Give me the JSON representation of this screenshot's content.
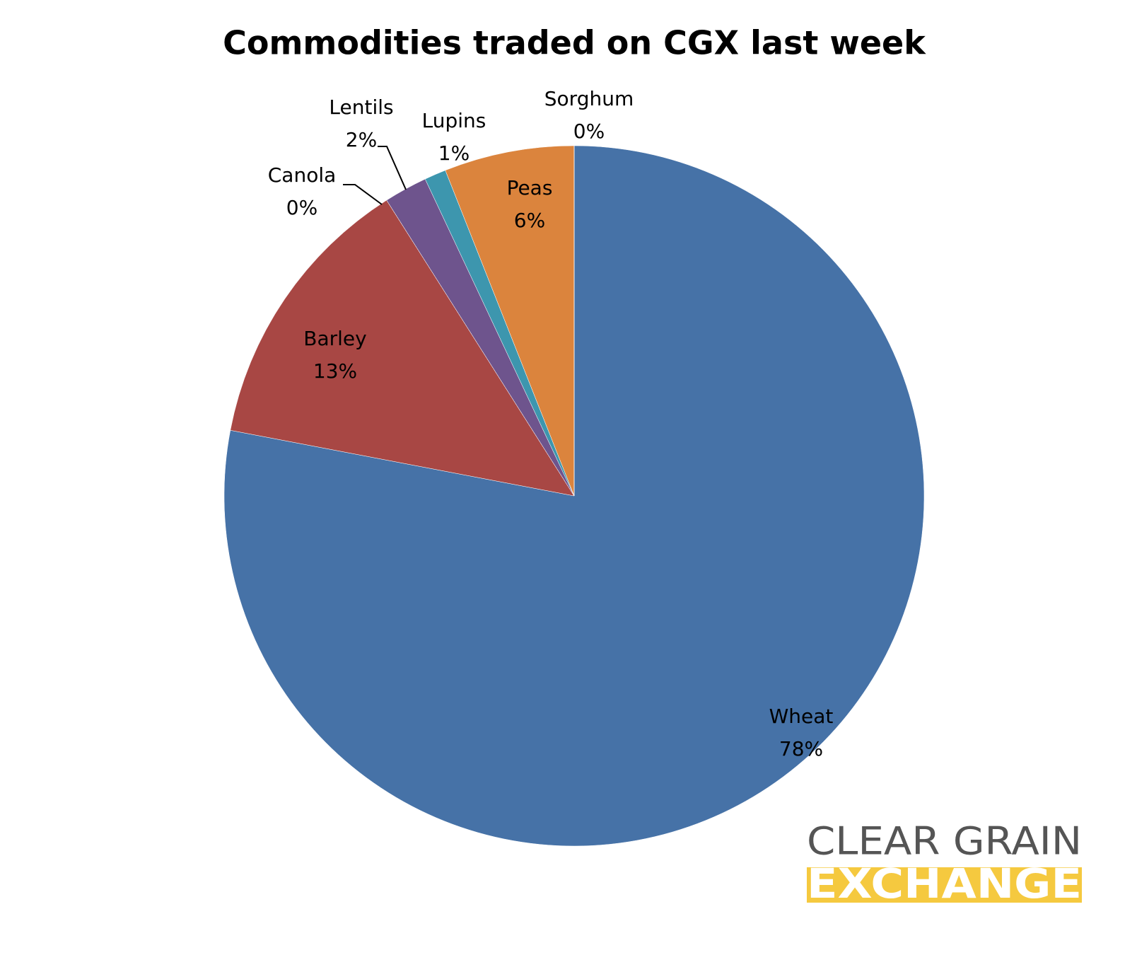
{
  "chart_data": {
    "type": "pie",
    "title": "Commodities traded on CGX last week",
    "categories": [
      "Wheat",
      "Barley",
      "Canola",
      "Lentils",
      "Lupins",
      "Peas",
      "Sorghum"
    ],
    "values": [
      78,
      13,
      0,
      2,
      1,
      6,
      0
    ],
    "value_labels": [
      "78%",
      "13%",
      "0%",
      "2%",
      "1%",
      "6%",
      "0%"
    ],
    "colors": [
      "#4672a7",
      "#a84744",
      "#89a54e",
      "#6e548d",
      "#3d96ae",
      "#db843d",
      "#a5b4d4"
    ]
  },
  "logo": {
    "line1": "CLEAR GRAIN",
    "line2": "EXCHANGE"
  }
}
